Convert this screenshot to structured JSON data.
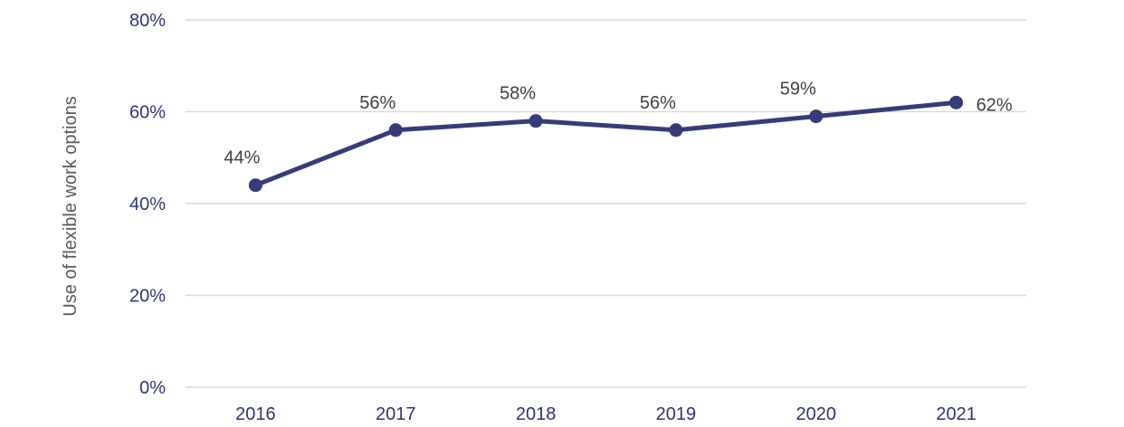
{
  "chart_data": {
    "type": "line",
    "title": "",
    "xlabel": "",
    "ylabel": "Use of flexible work options",
    "categories": [
      "2016",
      "2017",
      "2018",
      "2019",
      "2020",
      "2021"
    ],
    "series": [
      {
        "values": [
          44,
          56,
          58,
          56,
          59,
          62
        ],
        "data_labels": [
          "44%",
          "56%",
          "58%",
          "56%",
          "59%",
          "62%"
        ]
      }
    ],
    "y_ticks": [
      0,
      20,
      40,
      60,
      80
    ],
    "y_tick_labels": [
      "0%",
      "20%",
      "40%",
      "60%",
      "80%"
    ],
    "ylim": [
      0,
      80
    ],
    "grid": true,
    "legend": "none",
    "colors": {
      "line": "#363c78",
      "tick_text": "#2f3574",
      "data_label_text": "#404040",
      "axis_title_text": "#595959",
      "grid": "#d9d9d9"
    }
  }
}
